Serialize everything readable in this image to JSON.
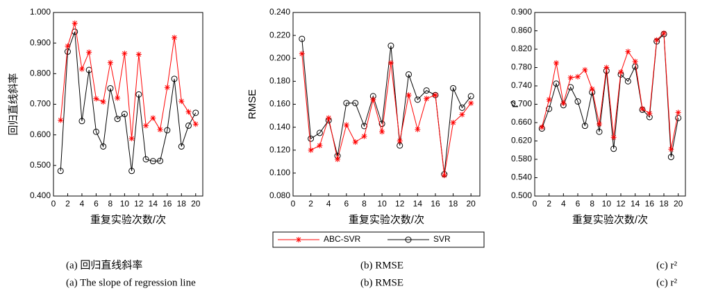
{
  "chart_data": [
    {
      "type": "line",
      "ylabel": "回归直线斜率",
      "xlabel": "重复实验次数/次",
      "caption": "(a)  回归直线斜率",
      "caption_en": "(a) The slope of regression line",
      "x": [
        1,
        2,
        3,
        4,
        5,
        6,
        7,
        8,
        9,
        10,
        11,
        12,
        13,
        14,
        15,
        16,
        17,
        18,
        19,
        20
      ],
      "xlim": [
        0,
        21
      ],
      "xticks": [
        0,
        2,
        4,
        6,
        8,
        10,
        12,
        14,
        16,
        18,
        20
      ],
      "ylim": [
        0.4,
        1.0
      ],
      "yticks": [
        {
          "value": 0.4,
          "label": "0.400"
        },
        {
          "value": 0.5,
          "label": "0.500"
        },
        {
          "value": 0.6,
          "label": "0.600"
        },
        {
          "value": 0.7,
          "label": "0.700"
        },
        {
          "value": 0.8,
          "label": "0.800"
        },
        {
          "value": 0.9,
          "label": "0.900"
        },
        {
          "value": 1.0,
          "label": "1.000"
        }
      ],
      "series": [
        {
          "name": "ABC-SVR",
          "color": "#ff0000",
          "marker": "star",
          "values": [
            0.648,
            0.89,
            0.965,
            0.815,
            0.87,
            0.718,
            0.708,
            0.836,
            0.72,
            0.866,
            0.588,
            0.863,
            0.63,
            0.655,
            0.617,
            0.755,
            0.918,
            0.71,
            0.675,
            0.635
          ]
        },
        {
          "name": "SVR",
          "color": "#000000",
          "marker": "circle",
          "values": [
            0.482,
            0.872,
            0.937,
            0.645,
            0.812,
            0.61,
            0.562,
            0.752,
            0.652,
            0.668,
            0.482,
            0.732,
            0.52,
            0.514,
            0.515,
            0.615,
            0.783,
            0.562,
            0.63,
            0.672
          ]
        }
      ]
    },
    {
      "type": "line",
      "ylabel": "RMSE",
      "xlabel": "重复实验次数/次",
      "caption": "(b) RMSE",
      "caption_en": "(b) RMSE",
      "x": [
        1,
        2,
        3,
        4,
        5,
        6,
        7,
        8,
        9,
        10,
        11,
        12,
        13,
        14,
        15,
        16,
        17,
        18,
        19,
        20
      ],
      "xlim": [
        0,
        21
      ],
      "xticks": [
        0,
        2,
        4,
        6,
        8,
        10,
        12,
        14,
        16,
        18,
        20
      ],
      "ylim": [
        0.08,
        0.24
      ],
      "yticks": [
        {
          "value": 0.08,
          "label": "0.080"
        },
        {
          "value": 0.1,
          "label": "0.100"
        },
        {
          "value": 0.12,
          "label": "0.120"
        },
        {
          "value": 0.14,
          "label": "0.140"
        },
        {
          "value": 0.16,
          "label": "0.160"
        },
        {
          "value": 0.18,
          "label": "0.180"
        },
        {
          "value": 0.2,
          "label": "0.200"
        },
        {
          "value": 0.22,
          "label": "0.220"
        },
        {
          "value": 0.24,
          "label": "0.240"
        }
      ],
      "series": [
        {
          "name": "ABC-SVR",
          "color": "#ff0000",
          "marker": "star",
          "values": [
            0.204,
            0.12,
            0.124,
            0.148,
            0.112,
            0.142,
            0.127,
            0.132,
            0.164,
            0.136,
            0.196,
            0.128,
            0.168,
            0.138,
            0.165,
            0.168,
            0.098,
            0.144,
            0.151,
            0.161
          ]
        },
        {
          "name": "SVR",
          "color": "#000000",
          "marker": "circle",
          "values": [
            0.217,
            0.13,
            0.135,
            0.146,
            0.115,
            0.161,
            0.161,
            0.141,
            0.167,
            0.143,
            0.211,
            0.124,
            0.186,
            0.164,
            0.172,
            0.168,
            0.099,
            0.174,
            0.157,
            0.167
          ]
        }
      ]
    },
    {
      "type": "line",
      "ylabel": "r²",
      "xlabel": "重复实验次数/次",
      "caption": "(c) r²",
      "caption_en": "(c) r²",
      "x": [
        1,
        2,
        3,
        4,
        5,
        6,
        7,
        8,
        9,
        10,
        11,
        12,
        13,
        14,
        15,
        16,
        17,
        18,
        19,
        20
      ],
      "xlim": [
        0,
        21
      ],
      "xticks": [
        0,
        2,
        4,
        6,
        8,
        10,
        12,
        14,
        16,
        18,
        20
      ],
      "ylim": [
        0.5,
        0.9
      ],
      "yticks": [
        {
          "value": 0.5,
          "label": "0.500"
        },
        {
          "value": 0.54,
          "label": "0.540"
        },
        {
          "value": 0.58,
          "label": "0.580"
        },
        {
          "value": 0.62,
          "label": "0.620"
        },
        {
          "value": 0.66,
          "label": "0.660"
        },
        {
          "value": 0.7,
          "label": "0.700"
        },
        {
          "value": 0.74,
          "label": "0.740"
        },
        {
          "value": 0.78,
          "label": "0.780"
        },
        {
          "value": 0.82,
          "label": "0.820"
        },
        {
          "value": 0.86,
          "label": "0.860"
        },
        {
          "value": 0.9,
          "label": "0.900"
        }
      ],
      "series": [
        {
          "name": "ABC-SVR",
          "color": "#ff0000",
          "marker": "star",
          "values": [
            0.65,
            0.71,
            0.79,
            0.702,
            0.758,
            0.76,
            0.775,
            0.733,
            0.657,
            0.78,
            0.628,
            0.77,
            0.815,
            0.793,
            0.69,
            0.68,
            0.84,
            0.855,
            0.602,
            0.682
          ]
        },
        {
          "name": "SVR",
          "color": "#000000",
          "marker": "circle",
          "values": [
            0.647,
            0.69,
            0.745,
            0.698,
            0.737,
            0.706,
            0.653,
            0.726,
            0.64,
            0.773,
            0.603,
            0.765,
            0.75,
            0.782,
            0.688,
            0.672,
            0.837,
            0.853,
            0.585,
            0.67
          ]
        }
      ]
    }
  ]
}
